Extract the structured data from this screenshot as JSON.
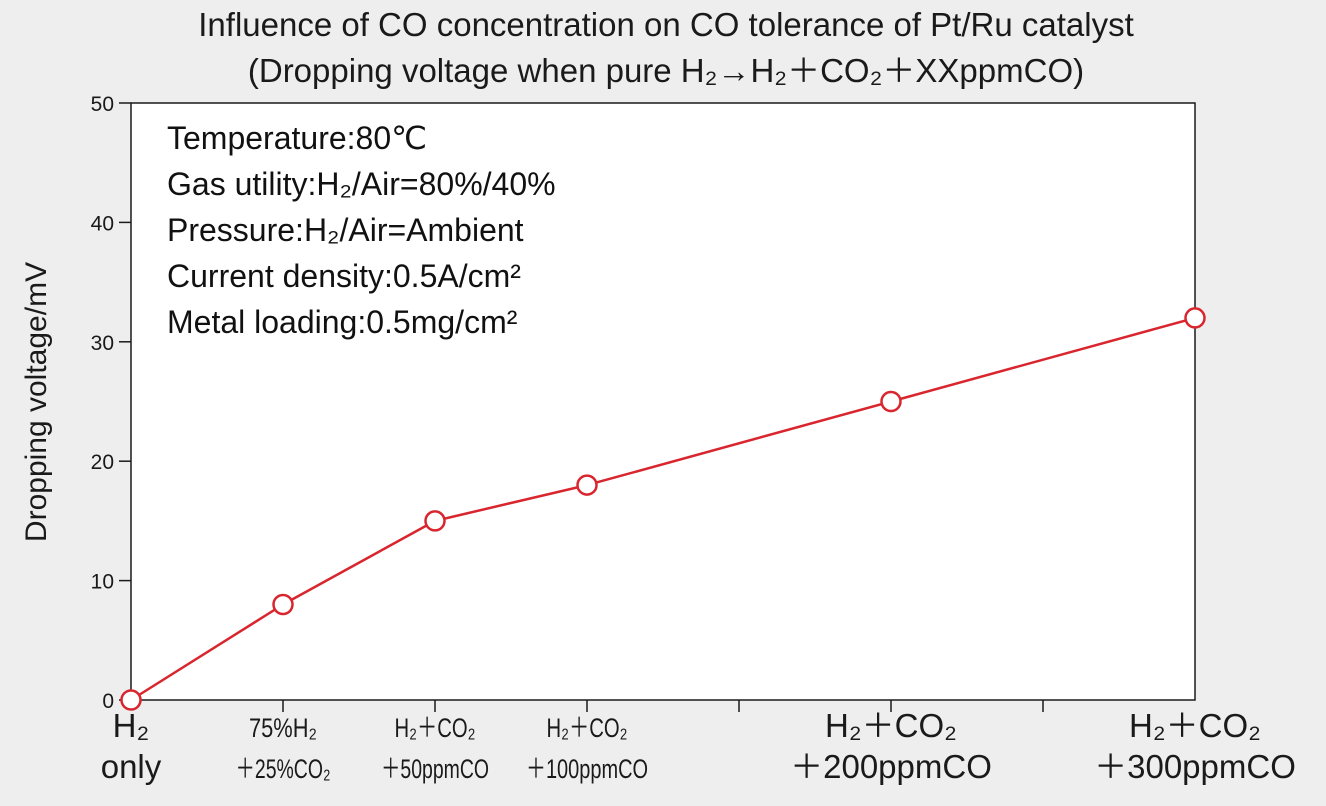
{
  "chart_data": {
    "type": "line",
    "title": "Influence of CO concentration on CO tolerance of Pt/Ru catalyst",
    "subtitle": "(Dropping voltage when pure H₂→H₂＋CO₂＋XXppmCO)",
    "ylabel": "Dropping voltage/mV",
    "xlabel": "",
    "ylim": [
      0,
      50
    ],
    "yticks": [
      0,
      10,
      20,
      30,
      40,
      50
    ],
    "x_range": [
      0,
      7
    ],
    "x_minor_ticks": [
      1,
      2,
      3,
      4,
      5,
      6
    ],
    "grid": false,
    "categories": [
      {
        "x": 0,
        "line1": "H₂",
        "line2": "only",
        "size": "large"
      },
      {
        "x": 1,
        "line1": "75%H₂",
        "line2": "＋25%CO₂",
        "size": "small"
      },
      {
        "x": 2,
        "line1": "H₂＋CO₂",
        "line2": "＋50ppmCO",
        "size": "small"
      },
      {
        "x": 3,
        "line1": "H₂＋CO₂",
        "line2": "＋100ppmCO",
        "size": "small"
      },
      {
        "x": 5,
        "line1": "H₂＋CO₂",
        "line2": "＋200ppmCO",
        "size": "large"
      },
      {
        "x": 7,
        "line1": "H₂＋CO₂",
        "line2": "＋300ppmCO",
        "size": "large"
      }
    ],
    "series": [
      {
        "x": [
          0,
          1,
          2,
          3,
          5,
          7
        ],
        "values": [
          0,
          8,
          15,
          18,
          25,
          32
        ],
        "color": "#d9262e",
        "marker": "open-circle"
      }
    ],
    "annotations": [
      "Temperature:80℃",
      "Gas utility:H₂/Air=80%/40%",
      "Pressure:H₂/Air=Ambient",
      "Current density:0.5A/cm²",
      "Metal loading:0.5mg/cm²"
    ]
  }
}
